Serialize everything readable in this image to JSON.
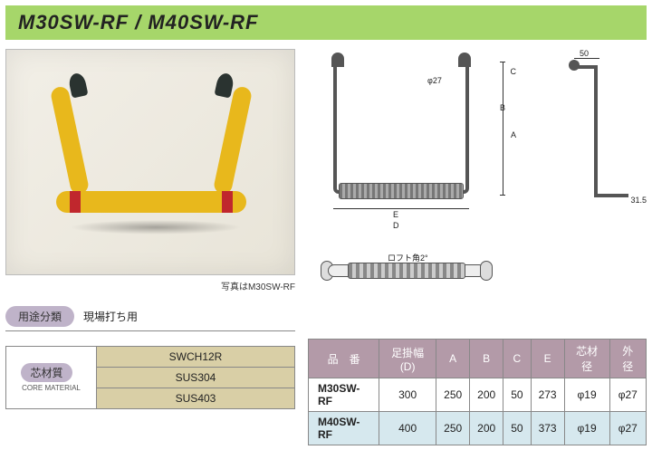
{
  "header": {
    "title": "M30SW-RF / M40SW-RF"
  },
  "photo": {
    "caption": "写真はM30SW-RF"
  },
  "diagram": {
    "front": {
      "phi": "φ27",
      "A": "A",
      "B": "B",
      "C": "C",
      "D": "D",
      "E": "E"
    },
    "side": {
      "top_dim": "50",
      "bottom_dim": "31.5"
    },
    "bottom": {
      "loft": "ロフト角2°"
    }
  },
  "usage": {
    "label": "用途分類",
    "value": "現場打ち用"
  },
  "core_material": {
    "label": "芯材質",
    "sublabel": "CORE MATERIAL",
    "values": [
      "SWCH12R",
      "SUS304",
      "SUS403"
    ]
  },
  "spec": {
    "header_color": "#b39aa8",
    "row2_bg": "#d6e8ee",
    "columns": [
      "品　番",
      "足掛幅(D)",
      "A",
      "B",
      "C",
      "E",
      "芯材径",
      "外径"
    ],
    "rows": [
      {
        "name": "M30SW-RF",
        "cells": [
          "300",
          "250",
          "200",
          "50",
          "273",
          "φ19",
          "φ27"
        ]
      },
      {
        "name": "M40SW-RF",
        "cells": [
          "400",
          "250",
          "200",
          "50",
          "373",
          "φ19",
          "φ27"
        ]
      }
    ]
  }
}
